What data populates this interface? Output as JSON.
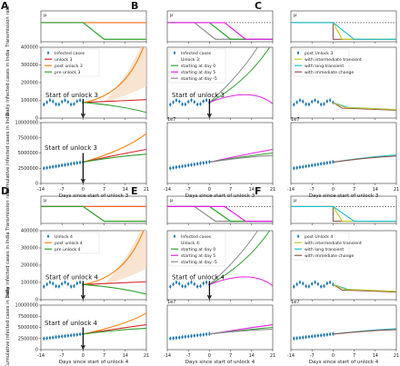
{
  "figure": {
    "ylabel_transmission": "Transmission rate",
    "ylabel_daily": "Daily infected cases in India",
    "ylabel_cumulative": "Cumulative infected cases in India",
    "mu_symbol": "μ",
    "exp_label": "1e7"
  },
  "colors": {
    "red": "#d62728",
    "green": "#2ca02c",
    "orange": "#ff7f0e",
    "magenta": "#e81ee8",
    "gray": "#8c8c8c",
    "yellow": "#c8c820",
    "cyan": "#17becf",
    "brown": "#8c564b",
    "blue": "#1f77b4",
    "shade": "#f7d9bd"
  },
  "panels": [
    {
      "letter": "A",
      "xlabel": "Days since start of unlock 3",
      "legend": [
        "Infected cases",
        "unlock 3",
        "post unlock 3",
        "pre unlock 3"
      ],
      "legend_colors": [
        "blue",
        "red",
        "orange",
        "green"
      ],
      "annotation_daily": "Start of unlock 3",
      "annotation_cum": "Start of unlock 3",
      "daily_ticks": [
        "0",
        "100000",
        "200000",
        "300000",
        "400000"
      ],
      "cum_ticks": [
        "0",
        "2500000",
        "5000000",
        "7500000",
        "10000000"
      ]
    },
    {
      "letter": "B",
      "xlabel": "Days since start of unlock 3",
      "legend": [
        "Infected cases",
        "Unlock 3:",
        "starting at day 0",
        "starting at day 5",
        "starting at day -5"
      ],
      "legend_colors": [
        "blue",
        "",
        "green",
        "magenta",
        "gray"
      ],
      "annotation_daily": "Start of unlock 3"
    },
    {
      "letter": "C",
      "xlabel": "Days since start of unlock 3",
      "legend": [
        "post Unlock 3",
        "with intermediate transient",
        "with long transient",
        "with immediate change"
      ],
      "legend_colors": [
        "blue",
        "yellow",
        "cyan",
        "brown"
      ]
    },
    {
      "letter": "D",
      "xlabel": "Days since start of unlock 4",
      "legend": [
        "Unlock 4",
        "post unlock 4",
        "pre unlock 4"
      ],
      "legend_colors": [
        "blue",
        "orange",
        "green"
      ],
      "annotation_daily": "Start of unlock 4",
      "annotation_cum": "Start of unlock 4",
      "daily_ticks": [
        "0",
        "100000",
        "200000",
        "300000",
        "400000"
      ],
      "cum_ticks": [
        "0",
        "2500000",
        "5000000",
        "7500000",
        "10000000"
      ]
    },
    {
      "letter": "E",
      "xlabel": "Days since start of unlock 4",
      "legend": [
        "Infected cases",
        "Unlock 4:",
        "starting at day 0",
        "starting at day 5",
        "starting at day -5"
      ],
      "legend_colors": [
        "blue",
        "",
        "green",
        "magenta",
        "gray"
      ],
      "annotation_daily": "Start of unlock 4"
    },
    {
      "letter": "F",
      "xlabel": "Days since start of unlock 4",
      "legend": [
        "post Unlock 4",
        "with intermediate transient",
        "with long transient",
        "with immediate change"
      ],
      "legend_colors": [
        "blue",
        "yellow",
        "cyan",
        "brown"
      ]
    }
  ],
  "chart_data": {
    "type": "line",
    "x_ticks": [
      "-14",
      "-7",
      "0",
      "7",
      "14",
      "21"
    ],
    "xlim": [
      -14,
      21
    ],
    "transmission_ylim": [
      0,
      0.25
    ],
    "daily_ylim": [
      0,
      400000
    ],
    "cumulative_ylim": [
      0,
      10000000
    ]
  }
}
